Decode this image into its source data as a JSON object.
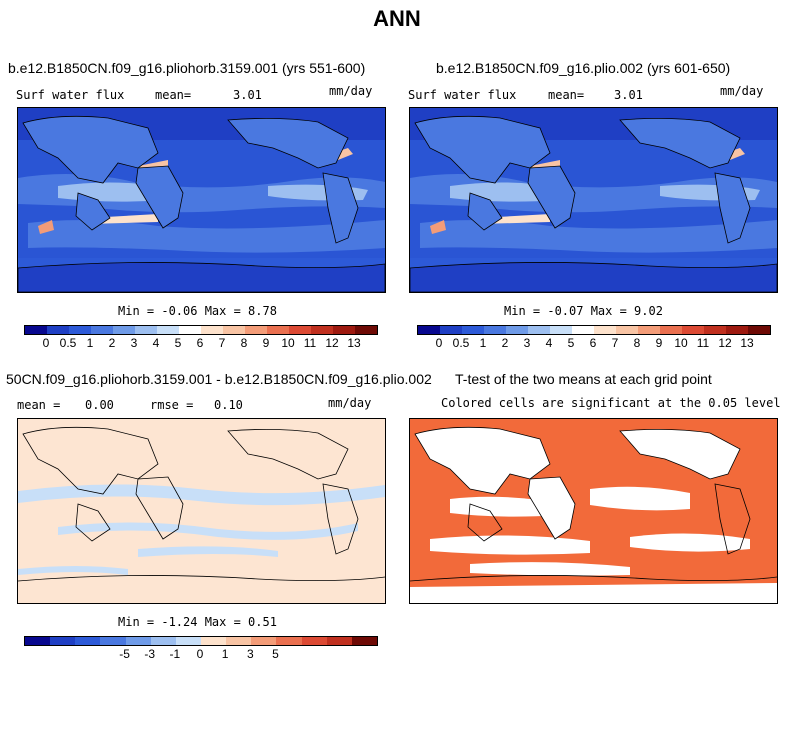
{
  "season": "ANN",
  "panels": [
    {
      "title": "b.e12.B1850CN.f09_g16.pliohorb.3159.001 (yrs 551-600)",
      "variable": "Surf water flux",
      "stat_label": "mean=",
      "stat_value": "3.01",
      "units": "mm/day",
      "minmax": "Min =  -0.06 Max =   8.78"
    },
    {
      "title": "b.e12.B1850CN.f09_g16.plio.002 (yrs 601-650)",
      "variable": "Surf water flux",
      "stat_label": "mean=",
      "stat_value": "3.01",
      "units": "mm/day",
      "minmax": "Min =  -0.07 Max =   9.02"
    },
    {
      "title": "50CN.f09_g16.pliohorb.3159.001 - b.e12.B1850CN.f09_g16.plio.002",
      "stat_label": "mean =",
      "stat_value": "0.00",
      "stat2_label": "rmse =",
      "stat2_value": "0.10",
      "units": "mm/day",
      "minmax": "Min =  -1.24 Max =   0.51"
    },
    {
      "title": "T-test of the two means at each grid point",
      "subtitle": "Colored cells are significant at the 0.05 level"
    }
  ],
  "colorbar_abs": {
    "ticks": [
      "0",
      "0.5",
      "1",
      "2",
      "3",
      "4",
      "5",
      "6",
      "7",
      "8",
      "9",
      "10",
      "11",
      "12",
      "13"
    ],
    "colors": [
      "#08088f",
      "#1f3fc4",
      "#2d5ad8",
      "#4a78e0",
      "#6f9be8",
      "#9dbff0",
      "#c8dff8",
      "#ffffff",
      "#fde2cc",
      "#f8c4a4",
      "#f39c78",
      "#ea7050",
      "#dc4a34",
      "#c0301f",
      "#9e1a10",
      "#6e0a05"
    ]
  },
  "colorbar_diff": {
    "ticks": [
      "-5",
      "-3",
      "-1",
      "0",
      "1",
      "3",
      "5"
    ],
    "colors": [
      "#08088f",
      "#1f3fc4",
      "#2d5ad8",
      "#4a78e0",
      "#6f9be8",
      "#9dbff0",
      "#c8dff8",
      "#fde2cc",
      "#f8c4a4",
      "#f39c78",
      "#ea7050",
      "#dc4a34",
      "#c0301f",
      "#6e0a05"
    ]
  },
  "colors": {
    "ocean_deep": "#2a55d4",
    "ocean_mid": "#4a78e0",
    "ocean_light": "#9dbff0",
    "ocean_pale": "#c8dff8",
    "diff_bg": "#fde5d2",
    "diff_neg": "#c8dff8",
    "ttest": "#f26a3a"
  }
}
